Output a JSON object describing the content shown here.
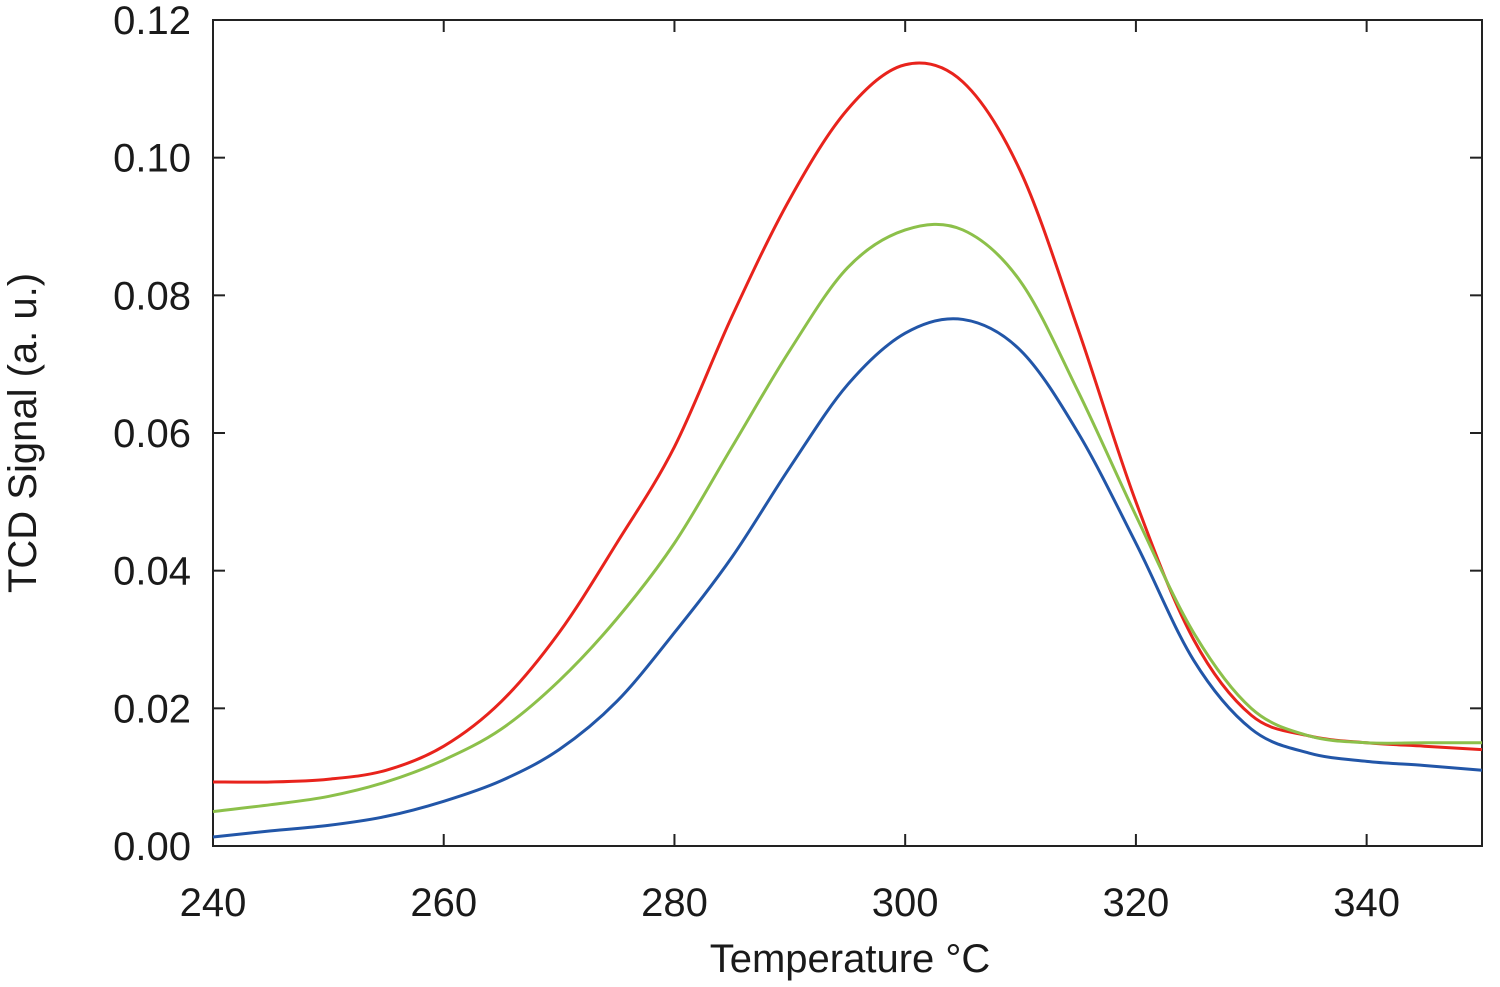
{
  "chart_data": {
    "type": "line",
    "xlabel": "Temperature °C",
    "ylabel": "TCD Signal (a. u.)",
    "x": [
      240,
      245,
      250,
      255,
      260,
      265,
      270,
      275,
      280,
      285,
      290,
      295,
      300,
      305,
      310,
      315,
      320,
      325,
      330,
      335,
      340,
      345,
      350
    ],
    "series": [
      {
        "color": "#e8231c",
        "values": [
          0.0093,
          0.0093,
          0.0097,
          0.011,
          0.0145,
          0.021,
          0.031,
          0.044,
          0.058,
          0.077,
          0.094,
          0.107,
          0.1135,
          0.111,
          0.098,
          0.075,
          0.05,
          0.03,
          0.019,
          0.016,
          0.015,
          0.0145,
          0.014
        ]
      },
      {
        "color": "#8cc04a",
        "values": [
          0.005,
          0.006,
          0.0072,
          0.0093,
          0.0125,
          0.017,
          0.024,
          0.033,
          0.044,
          0.058,
          0.072,
          0.084,
          0.0895,
          0.0895,
          0.082,
          0.066,
          0.048,
          0.031,
          0.02,
          0.016,
          0.015,
          0.015,
          0.015
        ]
      },
      {
        "color": "#2256a8",
        "values": [
          0.0013,
          0.0022,
          0.003,
          0.0043,
          0.0065,
          0.0095,
          0.014,
          0.021,
          0.031,
          0.042,
          0.055,
          0.067,
          0.0745,
          0.0765,
          0.072,
          0.06,
          0.044,
          0.027,
          0.017,
          0.0135,
          0.0123,
          0.0117,
          0.011
        ]
      }
    ],
    "xlim": [
      240,
      350
    ],
    "xticks": [
      240,
      260,
      280,
      300,
      320,
      340
    ],
    "ylim": [
      0,
      0.12
    ],
    "yticks": [
      {
        "value": 0,
        "label": "0.00"
      },
      0.02,
      0.04,
      0.06,
      0.08,
      {
        "value": 0.1,
        "label": "0.10"
      },
      0.12
    ],
    "grid": false
  }
}
